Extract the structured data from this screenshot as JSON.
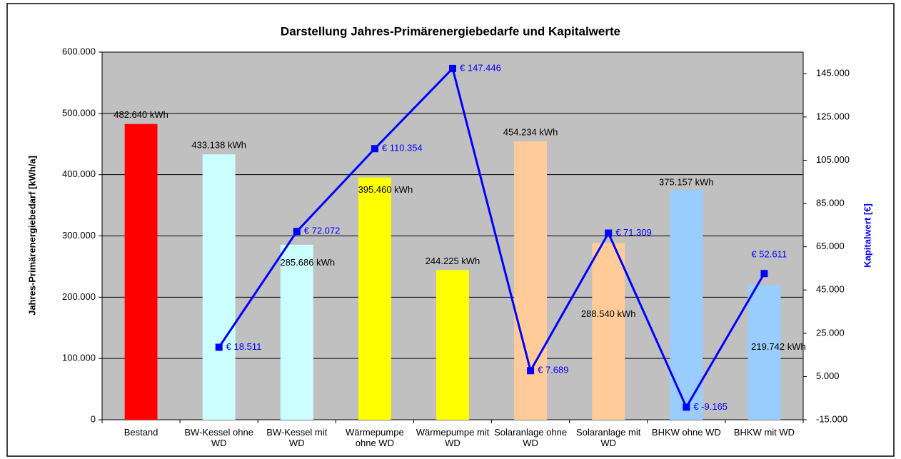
{
  "chart_data": {
    "type": "bar",
    "title": "Darstellung Jahres-Primärenergiebedarfe und Kapitalwerte",
    "y_label": "Jahres-Primärenergiebedarf [kWh/a]",
    "y2_label": "Kapitalwert [€]",
    "categories": [
      "Bestand",
      "BW-Kessel ohne WD",
      "BW-Kessel mit WD",
      "Wärmepumpe ohne WD",
      "Wärmepumpe mit WD",
      "Solaranlage ohne WD",
      "Solaranlage mit WD",
      "BHKW ohne WD",
      "BHKW mit WD"
    ],
    "series": [
      {
        "name": "Jahres-Primärenergiebedarf",
        "type": "bar",
        "colors": [
          "#ff0000",
          "#ccffff",
          "#ccffff",
          "#ffff00",
          "#ffff00",
          "#ffcc99",
          "#ffcc99",
          "#99ccff",
          "#99ccff"
        ],
        "values": [
          482640,
          433138,
          285686,
          395460,
          244225,
          454234,
          288540,
          375157,
          219742
        ],
        "value_labels": [
          "482.640 kWh",
          "433.138 kWh",
          "285.686 kWh",
          "395.460 kWh",
          "244.225 kWh",
          "454.234 kWh",
          "288.540 kWh",
          "375.157 kWh",
          "219.742 kWh"
        ]
      },
      {
        "name": "Kapitalwert",
        "type": "line",
        "axis": "y2",
        "color": "#0000ff",
        "values": [
          null,
          18511,
          72072,
          110354,
          147446,
          7689,
          71309,
          -9165,
          52611
        ],
        "value_labels": [
          null,
          "€ 18.511",
          "€ 72.072",
          "€ 110.354",
          "€ 147.446",
          "€ 7.689",
          "€ 71.309",
          "€ -9.165",
          "€ 52.611"
        ]
      }
    ],
    "ylim": [
      0,
      600000
    ],
    "yticks": [
      {
        "value": 0,
        "label": "0"
      },
      {
        "value": 100000,
        "label": "100.000"
      },
      {
        "value": 200000,
        "label": "200.000"
      },
      {
        "value": 300000,
        "label": "300.000"
      },
      {
        "value": 400000,
        "label": "400.000"
      },
      {
        "value": 500000,
        "label": "500.000"
      },
      {
        "value": 600000,
        "label": "600.000"
      }
    ],
    "y2lim": [
      -15000,
      155000
    ],
    "y2ticks": [
      {
        "value": -15000,
        "label": "-15.000"
      },
      {
        "value": 5000,
        "label": "5.000"
      },
      {
        "value": 25000,
        "label": "25.000"
      },
      {
        "value": 45000,
        "label": "45.000"
      },
      {
        "value": 65000,
        "label": "65.000"
      },
      {
        "value": 85000,
        "label": "85.000"
      },
      {
        "value": 105000,
        "label": "105.000"
      },
      {
        "value": 125000,
        "label": "125.000"
      },
      {
        "value": 145000,
        "label": "145.000"
      }
    ],
    "grid": true,
    "plot_background": "#c0c0c0"
  }
}
